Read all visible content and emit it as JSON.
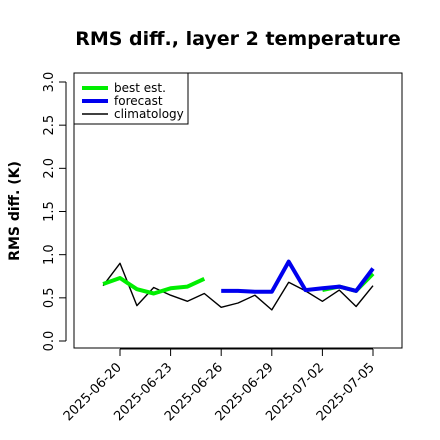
{
  "chart_data": {
    "type": "line",
    "title": "RMS diff., layer 2 temperature",
    "xlabel": "",
    "ylabel": "RMS diff. (K)",
    "ylim": [
      0,
      3.0
    ],
    "yticks": [
      "0.0",
      "0.5",
      "1.0",
      "1.5",
      "2.0",
      "2.5",
      "3.0"
    ],
    "xticks": [
      {
        "label": "2025-06-20",
        "color": "#000000"
      },
      {
        "label": "2025-06-23",
        "color": "#000000"
      },
      {
        "label": "2025-06-26",
        "color": "#228b22"
      },
      {
        "label": "2025-06-29",
        "color": "#000000"
      },
      {
        "label": "2025-07-02",
        "color": "#000000"
      },
      {
        "label": "2025-07-05",
        "color": "#000000"
      }
    ],
    "x": [
      "2025-06-19",
      "2025-06-20",
      "2025-06-21",
      "2025-06-22",
      "2025-06-23",
      "2025-06-24",
      "2025-06-25",
      "2025-06-26",
      "2025-06-27",
      "2025-06-28",
      "2025-06-29",
      "2025-06-30",
      "2025-07-01",
      "2025-07-02",
      "2025-07-03",
      "2025-07-04",
      "2025-07-05"
    ],
    "series": [
      {
        "name": "best est.",
        "color": "#00ee00",
        "values": [
          0.66,
          0.73,
          0.6,
          0.55,
          0.61,
          0.63,
          0.72,
          null,
          null,
          null,
          null,
          null,
          null,
          0.59,
          0.63,
          0.58,
          0.78
        ]
      },
      {
        "name": "forecast",
        "color": "#0000ee",
        "values": [
          null,
          null,
          null,
          null,
          null,
          null,
          null,
          0.58,
          0.58,
          0.57,
          0.57,
          0.92,
          0.59,
          0.61,
          0.63,
          0.58,
          0.84
        ]
      },
      {
        "name": "climatology",
        "color": "#000000",
        "values": [
          0.64,
          0.9,
          0.41,
          0.62,
          0.53,
          0.46,
          0.55,
          0.39,
          0.44,
          0.53,
          0.36,
          0.68,
          0.58,
          0.46,
          0.59,
          0.4,
          0.64
        ]
      }
    ],
    "legend": "top-left",
    "grid": false
  }
}
